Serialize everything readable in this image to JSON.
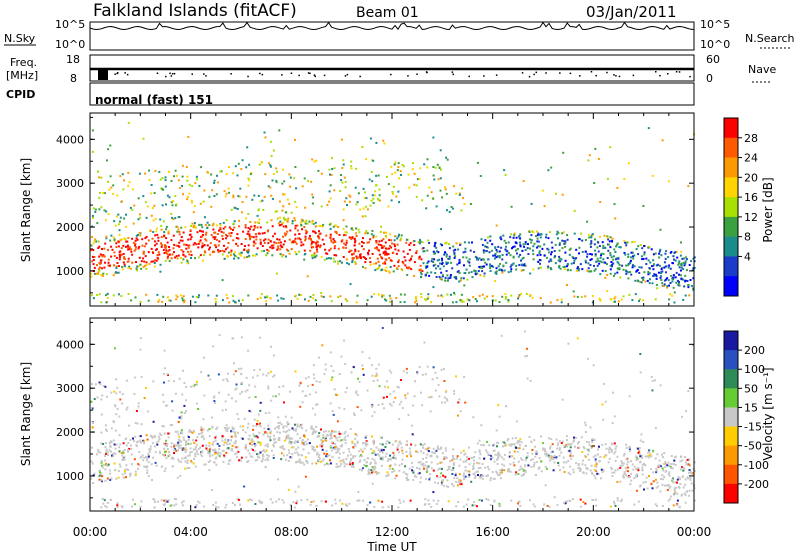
{
  "header": {
    "title": "Falkland Islands (fitACF)",
    "beam": "Beam 01",
    "date": "03/Jan/2011"
  },
  "strips": {
    "nsky": {
      "label": "N.Sky",
      "ticks": [
        "10^5",
        "10^0"
      ]
    },
    "nsearch": {
      "label": "N.Search",
      "ticks": [
        "10^5",
        "10^0"
      ]
    },
    "freq": {
      "label_line1": "Freq.",
      "label_line2": "[MHz]",
      "ticks": [
        "18",
        "8"
      ]
    },
    "nave": {
      "label": "Nave",
      "ticks": [
        "60",
        "0"
      ]
    },
    "cpid": {
      "label": "CPID",
      "value": "normal (fast) 151"
    }
  },
  "chart_data": [
    {
      "type": "heatmap",
      "title": "",
      "xlabel": "Time UT",
      "ylabel": "Slant Range [km]",
      "xticks": [
        "00:00",
        "04:00",
        "08:00",
        "12:00",
        "16:00",
        "20:00",
        "00:00"
      ],
      "yticks": [
        "1000",
        "2000",
        "3000",
        "4000"
      ],
      "ylim": [
        200,
        4600
      ],
      "colorbar": {
        "label": "Power [dB]",
        "ticks": [
          "28",
          "24",
          "20",
          "16",
          "12",
          "8",
          "4"
        ],
        "colors": [
          "#ff0000",
          "#ff5a00",
          "#ff9900",
          "#ffd400",
          "#a8e000",
          "#3aa040",
          "#1a8c8c",
          "#1a3cc8",
          "#0000ff"
        ]
      }
    },
    {
      "type": "heatmap",
      "title": "",
      "xlabel": "Time UT",
      "ylabel": "Slant Range [km]",
      "xticks": [
        "00:00",
        "04:00",
        "08:00",
        "12:00",
        "16:00",
        "20:00",
        "00:00"
      ],
      "yticks": [
        "1000",
        "2000",
        "3000",
        "4000"
      ],
      "ylim": [
        200,
        4600
      ],
      "colorbar": {
        "label": "Velocity [m s⁻¹]",
        "ticks": [
          "200",
          "100",
          "50",
          "15",
          "-15",
          "-50",
          "-100",
          "-200"
        ],
        "colors": [
          "#1a1aa0",
          "#2a50c0",
          "#2e8b57",
          "#66cc33",
          "#c8c8c8",
          "#ffcc00",
          "#ff9900",
          "#ff5500",
          "#ff0000"
        ]
      }
    }
  ]
}
